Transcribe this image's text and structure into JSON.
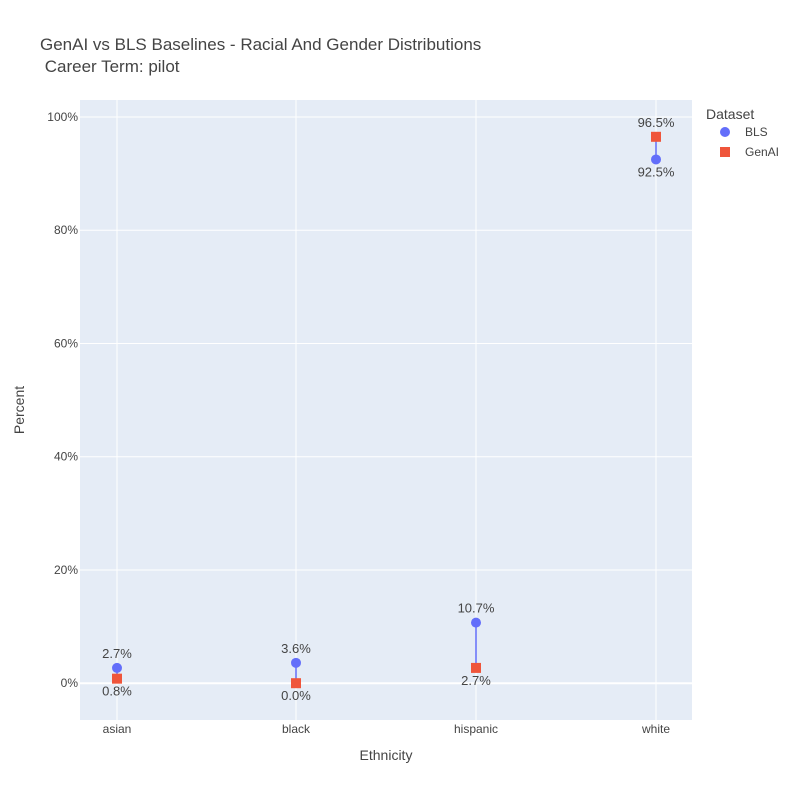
{
  "chart_data": {
    "type": "scatter",
    "title_line1": "GenAI vs BLS Baselines -  Racial And Gender Distributions",
    "title_line2": " Career Term: pilot",
    "xlabel": "Ethnicity",
    "ylabel": "Percent",
    "categories": [
      "asian",
      "black",
      "hispanic",
      "white"
    ],
    "ylim": [
      -6.5,
      103
    ],
    "yticks": [
      0,
      20,
      40,
      60,
      80,
      100
    ],
    "ytick_labels": [
      "0%",
      "20%",
      "40%",
      "60%",
      "80%",
      "100%"
    ],
    "grid": true,
    "legend": {
      "title": "Dataset",
      "placement": "top-right"
    },
    "series": [
      {
        "name": "BLS",
        "marker": "circle",
        "color": "#636efa",
        "values": [
          2.7,
          3.6,
          10.7,
          92.5
        ],
        "labels": [
          "2.7%",
          "3.6%",
          "10.7%",
          "92.5%"
        ]
      },
      {
        "name": "GenAI",
        "marker": "square",
        "color": "#ef553b",
        "values": [
          0.8,
          0.0,
          2.7,
          96.5
        ],
        "labels": [
          "0.8%",
          "0.0%",
          "2.7%",
          "96.5%"
        ]
      }
    ],
    "connector_color": "#636efa"
  }
}
